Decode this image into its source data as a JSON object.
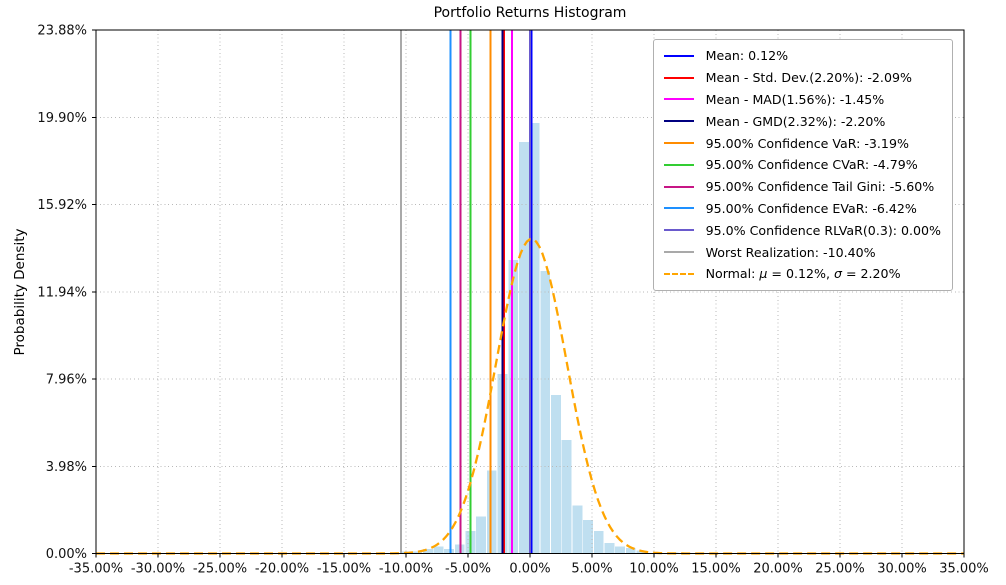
{
  "title": "Portfolio Returns Histogram",
  "chart_data": {
    "type": "histogram",
    "title": "Portfolio Returns Histogram",
    "xlabel": "",
    "ylabel": "Probability Density",
    "x_unit": "percent_return",
    "xlim_pct": [
      -35,
      35
    ],
    "ylim_pct": [
      0,
      23.88
    ],
    "x_ticks_pct": [
      -35,
      -30,
      -25,
      -20,
      -15,
      -10,
      -5,
      0,
      5,
      10,
      15,
      20,
      25,
      30,
      35
    ],
    "y_ticks_pct": [
      0,
      3.98,
      7.96,
      11.94,
      15.92,
      19.9,
      23.88
    ],
    "grid": true,
    "legend_position": "upper right",
    "histogram": {
      "fill_color": "#bfdff0",
      "edge_color": "#ffffff",
      "bin_edges_pct": [
        -10.4,
        -9.54,
        -8.68,
        -7.81,
        -6.95,
        -6.09,
        -5.23,
        -4.37,
        -3.51,
        -2.65,
        -1.78,
        -0.92,
        -0.06,
        0.8,
        1.66,
        2.52,
        3.39,
        4.25,
        5.11,
        5.97,
        6.83,
        7.69,
        8.56,
        9.42,
        10.28,
        11.14,
        12.0
      ],
      "densities_pct": [
        0.12,
        0.12,
        0.23,
        0.33,
        0.23,
        0.43,
        1.05,
        1.7,
        3.8,
        8.2,
        13.4,
        18.8,
        19.66,
        12.9,
        7.25,
        5.2,
        2.2,
        1.55,
        1.05,
        0.5,
        0.34,
        0.28,
        0.16,
        0.04,
        0.02,
        0.06
      ]
    },
    "vlines": [
      {
        "name": "mean",
        "label": "Mean: 0.12%",
        "value_pct": 0.12,
        "color": "#0000ff"
      },
      {
        "name": "mean-minus-std-dev",
        "label": "Mean - Std. Dev.(2.20%): -2.09%",
        "value_pct": -2.09,
        "color": "#ff0000"
      },
      {
        "name": "mean-minus-mad",
        "label": "Mean - MAD(1.56%): -1.45%",
        "value_pct": -1.45,
        "color": "#ff00ff"
      },
      {
        "name": "mean-minus-gmd",
        "label": "Mean - GMD(2.32%): -2.20%",
        "value_pct": -2.2,
        "color": "#000080"
      },
      {
        "name": "var-95",
        "label": "95.00% Confidence VaR: -3.19%",
        "value_pct": -3.19,
        "color": "#ff8c00"
      },
      {
        "name": "cvar-95",
        "label": "95.00% Confidence CVaR: -4.79%",
        "value_pct": -4.79,
        "color": "#32cd32"
      },
      {
        "name": "tail-gini-95",
        "label": "95.00% Confidence Tail Gini: -5.60%",
        "value_pct": -5.6,
        "color": "#c71585"
      },
      {
        "name": "evar-95",
        "label": "95.00% Confidence EVaR: -6.42%",
        "value_pct": -6.42,
        "color": "#1e90ff"
      },
      {
        "name": "rlvar-95",
        "label": "95.0% Confidence RLVaR(0.3): 0.00%",
        "value_pct": 0.0,
        "color": "#6a5acd"
      },
      {
        "name": "worst-realization",
        "label": "Worst Realization: -10.40%",
        "value_pct": -10.4,
        "color": "#a9a9a9"
      }
    ],
    "normal_curve": {
      "label": "Normal: μ = 0.12%, σ = 2.20%",
      "mu_pct": 0.12,
      "sigma_pct": 2.2,
      "peak_density_pct": 14.35,
      "render_sigma_pct": 2.85,
      "color": "#ffa500",
      "line_style": "dashed"
    }
  }
}
